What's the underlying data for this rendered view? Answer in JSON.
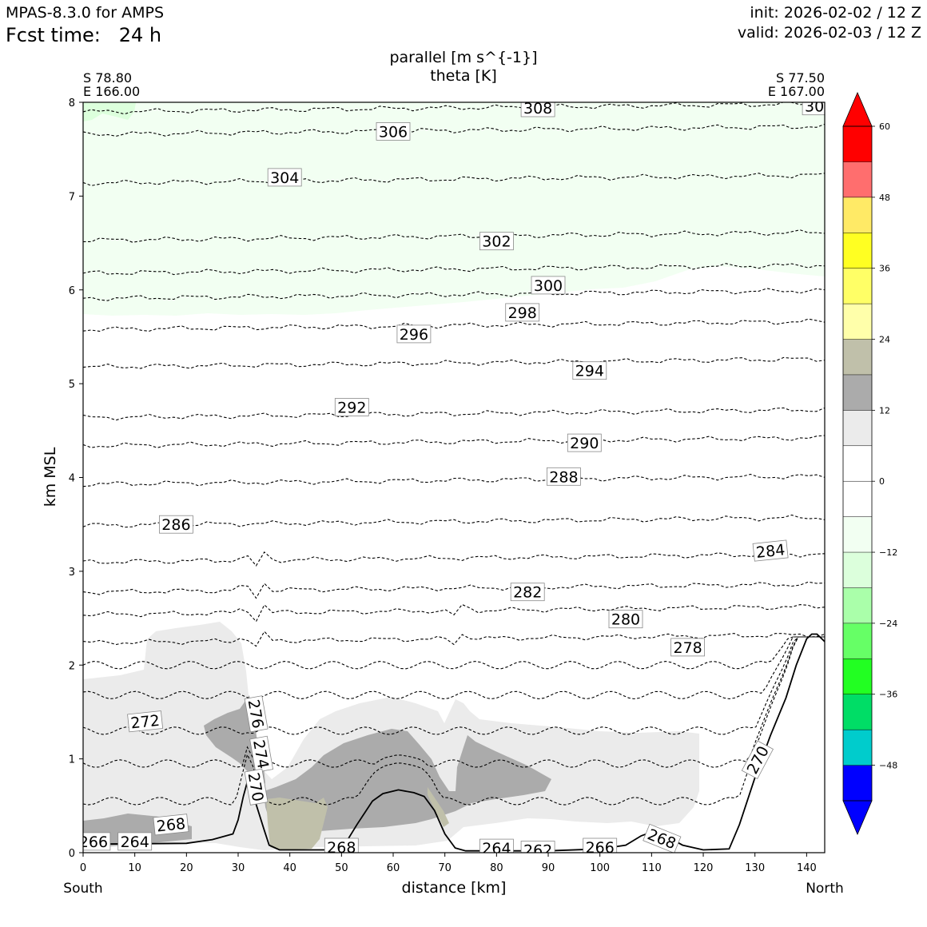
{
  "header": {
    "model": "MPAS-8.3.0 for AMPS",
    "fcst_time": "Fcst time:   24 h",
    "init": "init: 2026-02-02 / 12 Z",
    "valid": "valid: 2026-02-03 / 12 Z"
  },
  "colors": {
    "colorbar": [
      "#0000ff",
      "#00cccc",
      "#00dd66",
      "#22ff22",
      "#66ff66",
      "#aaffaa",
      "#dcffdc",
      "#f2fff2",
      "#ffffff",
      "#ffffff",
      "#ebebeb",
      "#ababab",
      "#c0c0aa",
      "#ffffaa",
      "#ffff66",
      "#ffff22",
      "#ffea66",
      "#ff6e6e",
      "#ff0000"
    ]
  },
  "chart_data": {
    "type": "cross-section contour",
    "title": "parallel [m s^{-1}]",
    "subtitle": "theta [K]",
    "xlabel": "distance [km]",
    "ylabel": "km MSL",
    "xlim": [
      0,
      143.5
    ],
    "ylim": [
      0,
      8
    ],
    "x_ticks": [
      "0",
      "10",
      "20",
      "30",
      "40",
      "50",
      "60",
      "70",
      "80",
      "90",
      "100",
      "110",
      "120",
      "130",
      "140"
    ],
    "y_ticks": [
      "0",
      "1",
      "2",
      "3",
      "4",
      "5",
      "6",
      "7",
      "8"
    ],
    "start_point": {
      "lat": "S 78.80",
      "lon": "E 166.00",
      "label": "South"
    },
    "end_point": {
      "lat": "S 77.50",
      "lon": "E 167.00",
      "label": "North"
    },
    "colorbar": {
      "min": -54,
      "max": 60,
      "step": 6,
      "tick_labels": [
        "60",
        "48",
        "36",
        "24",
        "12",
        "0",
        "−12",
        "−24",
        "−36",
        "−48"
      ]
    },
    "terrain": [
      [
        0,
        0.09
      ],
      [
        20,
        0.1
      ],
      [
        25,
        0.14
      ],
      [
        29,
        0.2
      ],
      [
        30,
        0.35
      ],
      [
        31,
        0.6
      ],
      [
        32,
        0.8
      ],
      [
        33,
        0.6
      ],
      [
        35,
        0.25
      ],
      [
        36,
        0.08
      ],
      [
        38,
        0.03
      ],
      [
        50,
        0.03
      ],
      [
        53,
        0.3
      ],
      [
        56,
        0.55
      ],
      [
        58,
        0.63
      ],
      [
        61,
        0.67
      ],
      [
        64,
        0.64
      ],
      [
        66,
        0.6
      ],
      [
        68,
        0.45
      ],
      [
        70,
        0.2
      ],
      [
        72,
        0.05
      ],
      [
        74,
        0.02
      ],
      [
        90,
        0.02
      ],
      [
        100,
        0.04
      ],
      [
        105,
        0.08
      ],
      [
        108,
        0.18
      ],
      [
        110,
        0.22
      ],
      [
        113,
        0.17
      ],
      [
        116,
        0.08
      ],
      [
        120,
        0.03
      ],
      [
        125,
        0.04
      ],
      [
        127,
        0.3
      ],
      [
        130,
        0.8
      ],
      [
        133,
        1.25
      ],
      [
        136,
        1.65
      ],
      [
        138,
        2.0
      ],
      [
        140,
        2.28
      ],
      [
        141,
        2.33
      ],
      [
        142,
        2.33
      ],
      [
        143.5,
        2.25
      ]
    ],
    "theta_contours": [
      {
        "value": 308,
        "y": 7.94
      },
      {
        "value": 306,
        "y": 7.7
      },
      {
        "value": 304,
        "y": 7.18
      },
      {
        "value": 302,
        "y": 6.57
      },
      {
        "value": 300,
        "y": 6.22
      },
      {
        "value": 298,
        "y": 5.95
      },
      {
        "value": 296,
        "y": 5.62
      },
      {
        "value": 294,
        "y": 5.22
      },
      {
        "value": 292,
        "y": 4.68
      },
      {
        "value": 290,
        "y": 4.38
      },
      {
        "value": 288,
        "y": 3.97
      },
      {
        "value": 286,
        "y": 3.53
      },
      {
        "value": 284,
        "y": 3.14
      },
      {
        "value": 282,
        "y": 2.82
      },
      {
        "value": 280,
        "y": 2.58
      },
      {
        "value": 278,
        "y": 2.28
      }
    ],
    "contour_labels": [
      {
        "text": "308",
        "x": 88,
        "y": 7.94
      },
      {
        "text": "30",
        "x": 141.5,
        "y": 7.96
      },
      {
        "text": "306",
        "x": 60,
        "y": 7.69
      },
      {
        "text": "304",
        "x": 39,
        "y": 7.2
      },
      {
        "text": "302",
        "x": 80,
        "y": 6.52
      },
      {
        "text": "300",
        "x": 90,
        "y": 6.05
      },
      {
        "text": "298",
        "x": 85,
        "y": 5.76
      },
      {
        "text": "296",
        "x": 64,
        "y": 5.53
      },
      {
        "text": "294",
        "x": 98,
        "y": 5.14
      },
      {
        "text": "292",
        "x": 52,
        "y": 4.75
      },
      {
        "text": "290",
        "x": 97,
        "y": 4.37
      },
      {
        "text": "288",
        "x": 93,
        "y": 4.01
      },
      {
        "text": "286",
        "x": 18,
        "y": 3.5
      },
      {
        "text": "284",
        "x": 133,
        "y": 3.22
      },
      {
        "text": "282",
        "x": 86,
        "y": 2.78
      },
      {
        "text": "280",
        "x": 105,
        "y": 2.49
      },
      {
        "text": "278",
        "x": 117,
        "y": 2.19
      },
      {
        "text": "276",
        "x": 33.5,
        "y": 1.48
      },
      {
        "text": "274",
        "x": 34.5,
        "y": 1.05
      },
      {
        "text": "272",
        "x": 12,
        "y": 1.4
      },
      {
        "text": "270",
        "x": 33.5,
        "y": 0.7
      },
      {
        "text": "270",
        "x": 130.5,
        "y": 0.99
      },
      {
        "text": "268",
        "x": 17,
        "y": 0.3
      },
      {
        "text": "268",
        "x": 50,
        "y": 0.06
      },
      {
        "text": "268",
        "x": 112,
        "y": 0.15
      },
      {
        "text": "266",
        "x": 2,
        "y": 0.12
      },
      {
        "text": "266",
        "x": 100,
        "y": 0.06
      },
      {
        "text": "264",
        "x": 10,
        "y": 0.12
      },
      {
        "text": "264",
        "x": 80,
        "y": 0.05
      },
      {
        "text": "262",
        "x": 88,
        "y": 0.03
      }
    ]
  }
}
